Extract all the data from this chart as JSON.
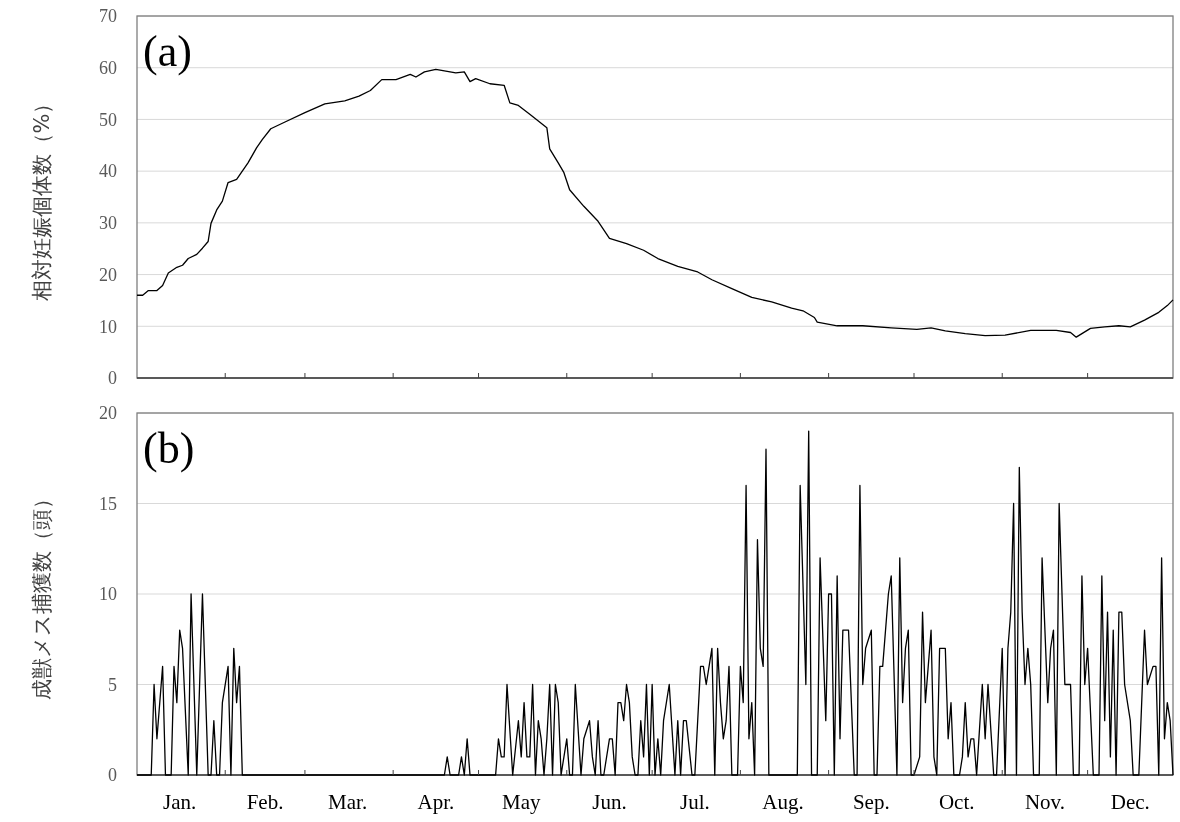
{
  "chart_data": [
    {
      "type": "line",
      "title": "(a)",
      "ylabel": "相対妊娠個体数（%）",
      "tick_labels": "y",
      "grid": "y",
      "xlim": [
        "--01-01",
        "--12-31"
      ],
      "ylim": [
        0,
        70
      ],
      "yticks": [
        0,
        10,
        20,
        30,
        40,
        50,
        60,
        70
      ],
      "xticks": [
        {
          "value": "--02-01",
          "label": null
        },
        {
          "value": "--03-01",
          "label": null
        },
        {
          "value": "--04-01",
          "label": null
        },
        {
          "value": "--05-01",
          "label": null
        },
        {
          "value": "--06-01",
          "label": null
        },
        {
          "value": "--07-01",
          "label": null
        },
        {
          "value": "--08-01",
          "label": null
        },
        {
          "value": "--09-01",
          "label": null
        },
        {
          "value": "--10-01",
          "label": null
        },
        {
          "value": "--11-01",
          "label": null
        },
        {
          "value": "--12-01",
          "label": null
        }
      ],
      "series": [
        {
          "color": "#000000",
          "x": [
            "--01-01",
            "--01-03",
            "--01-05",
            "--01-08",
            "--01-10",
            "--01-12",
            "--01-15",
            "--01-17",
            "--01-19",
            "--01-22",
            "--01-24",
            "--01-26",
            "--01-27",
            "--01-29",
            "--01-31",
            "--02-02",
            "--02-05",
            "--02-09",
            "--02-12",
            "--02-14",
            "--02-17",
            "--02-22",
            "--03-01",
            "--03-08",
            "--03-15",
            "--03-20",
            "--03-24",
            "--03-28",
            "--04-02",
            "--04-07",
            "--04-09",
            "--04-12",
            "--04-16",
            "--04-23",
            "--04-26",
            "--04-28",
            "--04-30",
            "--05-05",
            "--05-10",
            "--05-12",
            "--05-15",
            "--05-19",
            "--05-25",
            "--05-26",
            "--05-29",
            "--05-31",
            "--06-02",
            "--06-07",
            "--06-12",
            "--06-16",
            "--06-22",
            "--06-28",
            "--07-03",
            "--07-10",
            "--07-17",
            "--07-22",
            "--07-29",
            "--08-05",
            "--08-12",
            "--08-19",
            "--08-23",
            "--08-27",
            "--08-28",
            "--09-04",
            "--09-13",
            "--09-23",
            "--10-02",
            "--10-07",
            "--10-12",
            "--10-19",
            "--10-26",
            "--11-02",
            "--11-11",
            "--11-20",
            "--11-25",
            "--11-27",
            "--12-02",
            "--12-07",
            "--12-12",
            "--12-16",
            "--12-21",
            "--12-26",
            "--12-29",
            "--12-31"
          ],
          "values": [
            16.0,
            16.0,
            16.9,
            16.9,
            17.9,
            20.3,
            21.4,
            21.8,
            23.1,
            23.9,
            25.1,
            26.4,
            29.9,
            32.5,
            34.2,
            37.8,
            38.4,
            41.6,
            44.5,
            46.1,
            48.2,
            49.5,
            51.3,
            53.0,
            53.6,
            54.5,
            55.6,
            57.7,
            57.7,
            58.7,
            58.2,
            59.2,
            59.7,
            59.0,
            59.2,
            57.3,
            57.9,
            56.9,
            56.6,
            53.2,
            52.7,
            51.0,
            48.4,
            44.3,
            41.6,
            39.7,
            36.4,
            33.2,
            30.3,
            27.0,
            26.0,
            24.7,
            23.1,
            21.6,
            20.5,
            19.0,
            17.3,
            15.6,
            14.7,
            13.5,
            13.0,
            11.7,
            10.8,
            10.1,
            10.1,
            9.7,
            9.4,
            9.7,
            9.1,
            8.6,
            8.2,
            8.3,
            9.2,
            9.2,
            8.8,
            7.9,
            9.6,
            9.9,
            10.1,
            9.9,
            11.2,
            12.7,
            14.0,
            15.1
          ]
        }
      ]
    },
    {
      "type": "line",
      "title": "(b)",
      "ylabel": "成獣メス捕獲数（頭）",
      "grid": "y",
      "xlim": [
        "--01-01",
        "--12-31"
      ],
      "ylim": [
        0,
        20
      ],
      "yticks": [
        0,
        5,
        10,
        15,
        20
      ],
      "xticks": [
        {
          "value": "--01-16",
          "label": "Jan."
        },
        {
          "value": "--02-15",
          "label": "Feb."
        },
        {
          "value": "--03-16",
          "label": "Mar."
        },
        {
          "value": "--04-16",
          "label": "Apr."
        },
        {
          "value": "--05-16",
          "label": "May"
        },
        {
          "value": "--06-16",
          "label": "Jun."
        },
        {
          "value": "--07-16",
          "label": "Jul."
        },
        {
          "value": "--08-16",
          "label": "Aug."
        },
        {
          "value": "--09-16",
          "label": "Sep."
        },
        {
          "value": "--10-16",
          "label": "Oct."
        },
        {
          "value": "--11-16",
          "label": "Nov."
        },
        {
          "value": "--12-16",
          "label": "Dec."
        },
        {
          "value": "--02-01",
          "label": null
        },
        {
          "value": "--03-01",
          "label": null
        },
        {
          "value": "--04-01",
          "label": null
        },
        {
          "value": "--05-01",
          "label": null
        },
        {
          "value": "--06-01",
          "label": null
        },
        {
          "value": "--07-01",
          "label": null
        },
        {
          "value": "--08-01",
          "label": null
        },
        {
          "value": "--09-01",
          "label": null
        },
        {
          "value": "--10-01",
          "label": null
        },
        {
          "value": "--11-01",
          "label": null
        },
        {
          "value": "--12-01",
          "label": null
        }
      ],
      "series": [
        {
          "color": "#000000",
          "x": [
            "--01-01",
            "--01-06",
            "--01-07",
            "--01-08",
            "--01-10",
            "--01-11",
            "--01-13",
            "--01-14",
            "--01-15",
            "--01-16",
            "--01-17",
            "--01-19",
            "--01-20",
            "--01-22",
            "--01-24",
            "--01-26",
            "--01-27",
            "--01-28",
            "--01-29",
            "--01-30",
            "--01-31",
            "--02-02",
            "--02-03",
            "--02-04",
            "--02-05",
            "--02-06",
            "--02-07",
            "--04-19",
            "--04-20",
            "--04-21",
            "--04-24",
            "--04-25",
            "--04-26",
            "--04-27",
            "--04-28",
            "--05-07",
            "--05-08",
            "--05-09",
            "--05-10",
            "--05-11",
            "--05-13",
            "--05-15",
            "--05-16",
            "--05-17",
            "--05-18",
            "--05-19",
            "--05-20",
            "--05-21",
            "--05-22",
            "--05-23",
            "--05-24",
            "--05-25",
            "--05-26",
            "--05-27",
            "--05-28",
            "--05-29",
            "--05-30",
            "--06-01",
            "--06-02",
            "--06-03",
            "--06-04",
            "--06-06",
            "--06-07",
            "--06-09",
            "--06-10",
            "--06-11",
            "--06-12",
            "--06-13",
            "--06-14",
            "--06-15",
            "--06-16",
            "--06-17",
            "--06-18",
            "--06-19",
            "--06-20",
            "--06-21",
            "--06-22",
            "--06-23",
            "--06-24",
            "--06-25",
            "--06-26",
            "--06-27",
            "--06-28",
            "--06-29",
            "--06-30",
            "--07-01",
            "--07-02",
            "--07-03",
            "--07-04",
            "--07-05",
            "--07-07",
            "--07-09",
            "--07-10",
            "--07-11",
            "--07-12",
            "--07-13",
            "--07-15",
            "--07-16",
            "--07-18",
            "--07-19",
            "--07-20",
            "--07-22",
            "--07-23",
            "--07-24",
            "--07-25",
            "--07-26",
            "--07-27",
            "--07-28",
            "--07-29",
            "--07-31",
            "--08-01",
            "--08-02",
            "--08-03",
            "--08-04",
            "--08-05",
            "--08-06",
            "--08-07",
            "--08-08",
            "--08-09",
            "--08-10",
            "--08-11",
            "--08-21",
            "--08-22",
            "--08-24",
            "--08-25",
            "--08-26",
            "--08-28",
            "--08-29",
            "--08-31",
            "--09-01",
            "--09-02",
            "--09-03",
            "--09-04",
            "--09-05",
            "--09-06",
            "--09-08",
            "--09-10",
            "--09-11",
            "--09-12",
            "--09-13",
            "--09-14",
            "--09-16",
            "--09-17",
            "--09-18",
            "--09-19",
            "--09-20",
            "--09-22",
            "--09-23",
            "--09-25",
            "--09-26",
            "--09-27",
            "--09-28",
            "--09-29",
            "--09-30",
            "--10-01",
            "--10-03",
            "--10-04",
            "--10-05",
            "--10-06",
            "--10-07",
            "--10-08",
            "--10-09",
            "--10-10",
            "--10-12",
            "--10-13",
            "--10-14",
            "--10-15",
            "--10-17",
            "--10-18",
            "--10-19",
            "--10-20",
            "--10-21",
            "--10-22",
            "--10-23",
            "--10-25",
            "--10-26",
            "--10-27",
            "--10-29",
            "--10-30",
            "--11-01",
            "--11-02",
            "--11-03",
            "--11-04",
            "--11-05",
            "--11-06",
            "--11-07",
            "--11-08",
            "--11-09",
            "--11-10",
            "--11-11",
            "--11-12",
            "--11-14",
            "--11-15",
            "--11-17",
            "--11-18",
            "--11-19",
            "--11-20",
            "--11-21",
            "--11-23",
            "--11-25",
            "--11-26",
            "--11-28",
            "--11-29",
            "--11-30",
            "--12-01",
            "--12-03",
            "--12-05",
            "--12-06",
            "--12-07",
            "--12-08",
            "--12-09",
            "--12-10",
            "--12-11",
            "--12-12",
            "--12-13",
            "--12-14",
            "--12-16",
            "--12-17",
            "--12-19",
            "--12-21",
            "--12-22",
            "--12-24",
            "--12-25",
            "--12-26",
            "--12-27",
            "--12-28",
            "--12-29",
            "--12-30",
            "--12-31"
          ],
          "values": [
            0,
            0,
            5,
            2,
            6,
            0,
            0,
            6,
            4,
            8,
            7,
            0,
            10,
            0,
            10,
            0,
            0,
            3,
            0,
            0,
            4,
            6,
            0,
            7,
            4,
            6,
            0,
            0,
            1,
            0,
            0,
            1,
            0,
            2,
            0,
            0,
            2,
            1,
            1,
            5,
            0,
            3,
            1,
            4,
            1,
            1,
            5,
            0,
            3,
            2,
            0,
            2,
            5,
            0,
            5,
            4,
            0,
            2,
            0,
            0,
            5,
            0,
            2,
            3,
            1,
            0,
            3,
            0,
            0,
            1,
            2,
            2,
            0,
            4,
            4,
            3,
            5,
            4,
            1,
            0,
            0,
            3,
            1,
            5,
            0,
            5,
            0,
            2,
            0,
            3,
            5,
            0,
            3,
            0,
            3,
            3,
            0,
            0,
            6,
            6,
            5,
            7,
            0,
            7,
            4,
            2,
            3,
            6,
            0,
            0,
            6,
            4,
            16,
            2,
            4,
            0,
            13,
            7,
            6,
            18,
            0,
            0,
            16,
            5,
            19,
            0,
            0,
            12,
            3,
            10,
            10,
            0,
            11,
            2,
            8,
            8,
            0,
            0,
            16,
            5,
            7,
            8,
            0,
            0,
            6,
            6,
            10,
            11,
            0,
            12,
            4,
            7,
            8,
            0,
            0,
            1,
            9,
            4,
            6,
            8,
            1,
            0,
            7,
            7,
            2,
            4,
            0,
            0,
            1,
            4,
            1,
            2,
            2,
            0,
            5,
            2,
            5,
            0,
            0,
            7,
            0,
            7,
            9,
            15,
            0,
            17,
            9,
            5,
            7,
            5,
            0,
            0,
            12,
            4,
            7,
            8,
            0,
            15,
            5,
            5,
            0,
            0,
            11,
            5,
            7,
            0,
            0,
            11,
            3,
            9,
            1,
            8,
            0,
            9,
            9,
            5,
            3,
            0,
            0,
            8,
            5,
            6,
            6,
            0,
            12,
            2,
            4,
            3,
            0
          ]
        }
      ]
    }
  ]
}
